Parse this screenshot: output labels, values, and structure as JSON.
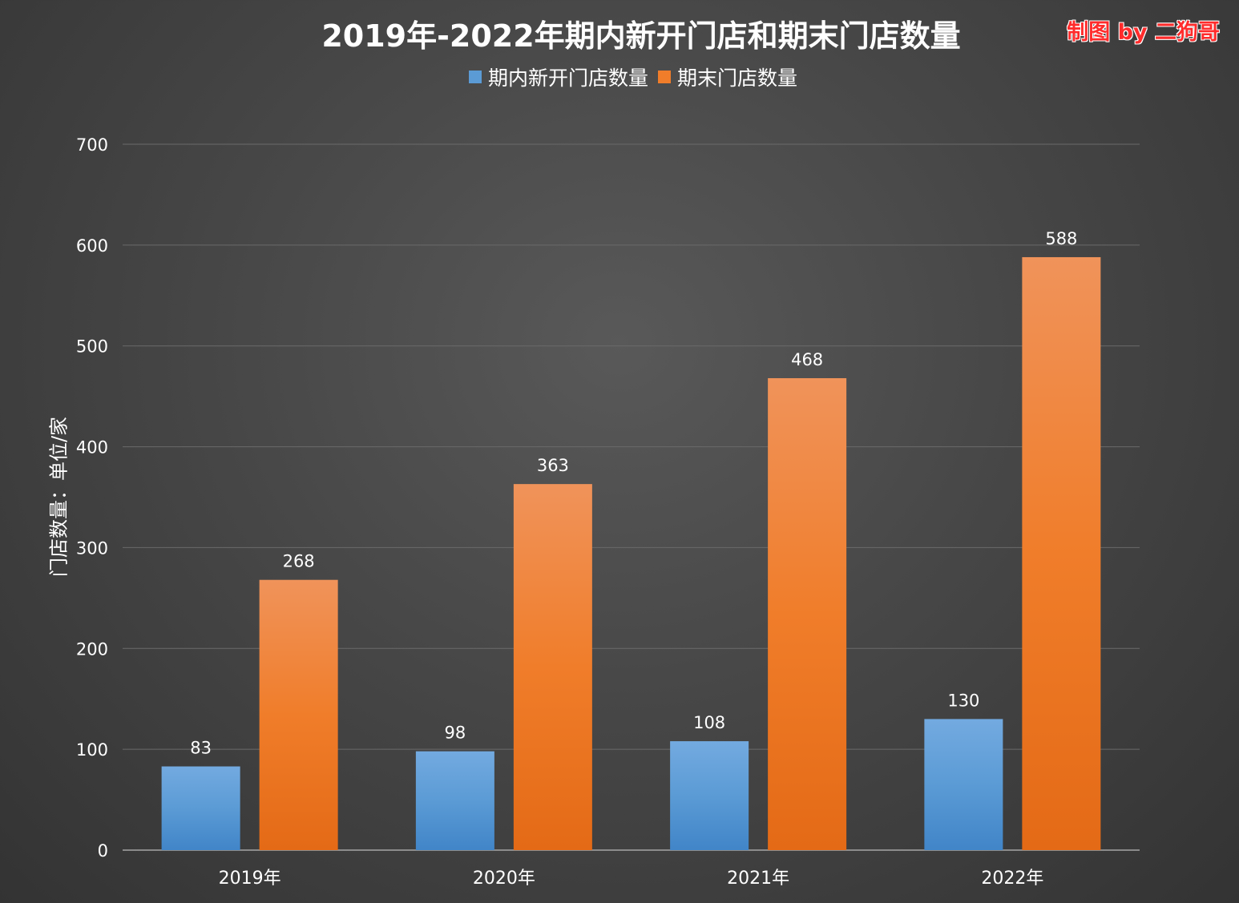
{
  "chart_data": {
    "type": "bar",
    "title": "2019年-2022年期内新开门店和期末门店数量",
    "watermark": "制图 by 二狗哥",
    "ylabel": "门店数量：单位/家",
    "xlabel": "",
    "categories": [
      "2019年",
      "2020年",
      "2021年",
      "2022年"
    ],
    "ylim": [
      0,
      700
    ],
    "yticks": [
      0,
      100,
      200,
      300,
      400,
      500,
      600,
      700
    ],
    "grid": true,
    "legend_position": "top-center",
    "series": [
      {
        "name": "期内新开门店数量",
        "values": [
          83,
          98,
          108,
          130
        ],
        "color": "#5b9bd5",
        "color_light": "#73aae0",
        "color_dark": "#4185c8"
      },
      {
        "name": "期末门店数量",
        "values": [
          268,
          363,
          468,
          588
        ],
        "color": "#f07d2a",
        "color_light": "#f0935a",
        "color_dark": "#e46a16"
      }
    ]
  }
}
